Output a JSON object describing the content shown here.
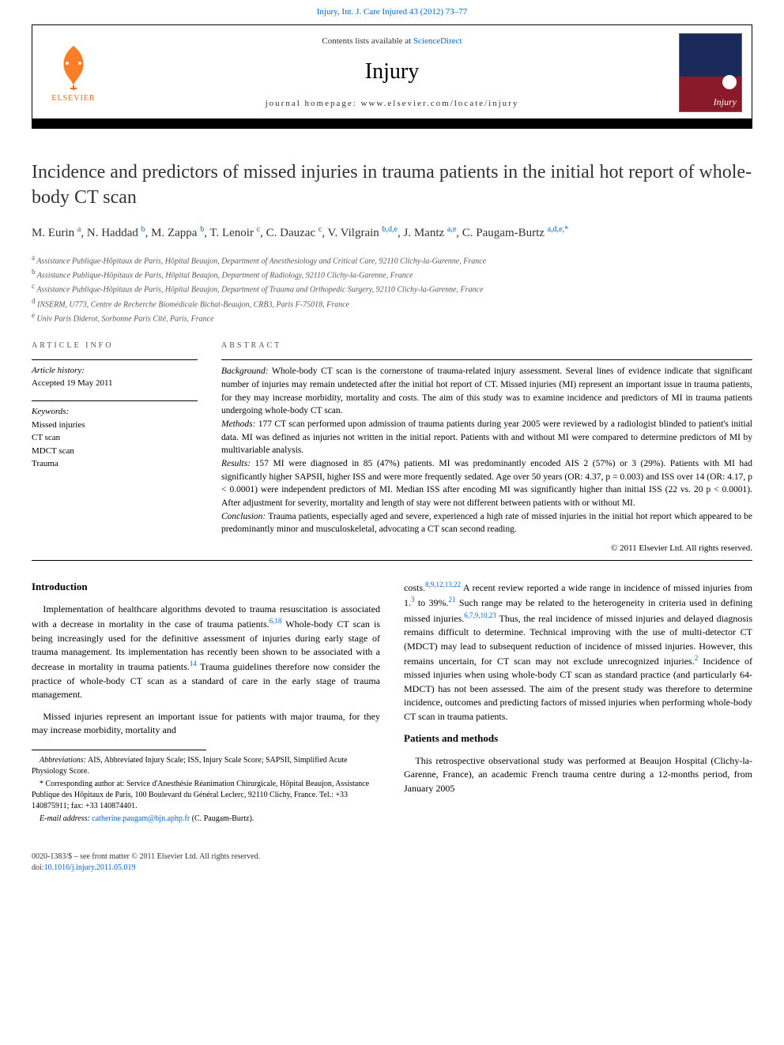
{
  "top_link": "Injury, Int. J. Care Injured 43 (2012) 73–77",
  "header": {
    "contents_prefix": "Contents lists available at ",
    "contents_link": "ScienceDirect",
    "journal": "Injury",
    "homepage_prefix": "journal homepage: ",
    "homepage": "www.elsevier.com/locate/injury",
    "elsevier": "ELSEVIER",
    "cover_label": "Injury"
  },
  "title": "Incidence and predictors of missed injuries in trauma patients in the initial hot report of whole-body CT scan",
  "authors_html": "M. Eurin <sup>a</sup>, N. Haddad <sup>b</sup>, M. Zappa <sup>b</sup>, T. Lenoir <sup>c</sup>, C. Dauzac <sup>c</sup>, V. Vilgrain <sup>b,d,e</sup>, J. Mantz <sup>a,e</sup>, C. Paugam-Burtz <sup>a,d,e,*</sup>",
  "affiliations": [
    {
      "sup": "a",
      "text": "Assistance Publique-Hôpitaux de Paris, Hôpital Beaujon, Department of Anesthesiology and Critical Care, 92110 Clichy-la-Garenne, France"
    },
    {
      "sup": "b",
      "text": "Assistance Publique-Hôpitaux de Paris, Hôpital Beaujon, Department of Radiology, 92110 Clichy-la-Garenne, France"
    },
    {
      "sup": "c",
      "text": "Assistance Publique-Hôpitaux de Paris, Hôpital Beaujon, Department of Trauma and Orthopedic Surgery, 92110 Clichy-la-Garenne, France"
    },
    {
      "sup": "d",
      "text": "INSERM, U773, Centre de Recherche Biomédicale Bichat-Beaujon, CRB3, Paris F-75018, France"
    },
    {
      "sup": "e",
      "text": "Univ Paris Diderot, Sorbonne Paris Cité, Paris, France"
    }
  ],
  "info": {
    "section_label": "ARTICLE INFO",
    "history_label": "Article history:",
    "history_value": "Accepted 19 May 2011",
    "keywords_label": "Keywords:",
    "keywords": [
      "Missed injuries",
      "CT scan",
      "MDCT scan",
      "Trauma"
    ]
  },
  "abstract": {
    "section_label": "ABSTRACT",
    "background_label": "Background:",
    "background": "Whole-body CT scan is the cornerstone of trauma-related injury assessment. Several lines of evidence indicate that significant number of injuries may remain undetected after the initial hot report of CT. Missed injuries (MI) represent an important issue in trauma patients, for they may increase morbidity, mortality and costs. The aim of this study was to examine incidence and predictors of MI in trauma patients undergoing whole-body CT scan.",
    "methods_label": "Methods:",
    "methods": "177 CT scan performed upon admission of trauma patients during year 2005 were reviewed by a radiologist blinded to patient's initial data. MI was defined as injuries not written in the initial report. Patients with and without MI were compared to determine predictors of MI by multivariable analysis.",
    "results_label": "Results:",
    "results": "157 MI were diagnosed in 85 (47%) patients. MI was predominantly encoded AIS 2 (57%) or 3 (29%). Patients with MI had significantly higher SAPSII, higher ISS and were more frequently sedated. Age over 50 years (OR: 4.37, p = 0.003) and ISS over 14 (OR: 4.17, p < 0.0001) were independent predictors of MI. Median ISS after encoding MI was significantly higher than initial ISS (22 vs. 20 p < 0.0001). After adjustment for severity, mortality and length of stay were not different between patients with or without MI.",
    "conclusion_label": "Conclusion:",
    "conclusion": "Trauma patients, especially aged and severe, experienced a high rate of missed injuries in the initial hot report which appeared to be predominantly minor and musculoskeletal, advocating a CT scan second reading.",
    "copyright": "© 2011 Elsevier Ltd. All rights reserved."
  },
  "body": {
    "left": {
      "heading": "Introduction",
      "p1": "Implementation of healthcare algorithms devoted to trauma resuscitation is associated with a decrease in mortality in the case of trauma patients.6,18 Whole-body CT scan is being increasingly used for the definitive assessment of injuries during early stage of trauma management. Its implementation has recently been shown to be associated with a decrease in mortality in trauma patients.14 Trauma guidelines therefore now consider the practice of whole-body CT scan as a standard of care in the early stage of trauma management.",
      "p2": "Missed injuries represent an important issue for patients with major trauma, for they may increase morbidity, mortality and"
    },
    "right": {
      "p1": "costs.8,9,12,13,22 A recent review reported a wide range in incidence of missed injuries from 1.3 to 39%.21 Such range may be related to the heterogeneity in criteria used in defining missed injuries.6,7,9,10,23 Thus, the real incidence of missed injuries and delayed diagnosis remains difficult to determine. Technical improving with the use of multi-detector CT (MDCT) may lead to subsequent reduction of incidence of missed injuries. However, this remains uncertain, for CT scan may not exclude unrecognized injuries.2 Incidence of missed injuries when using whole-body CT scan as standard practice (and particularly 64-MDCT) has not been assessed. The aim of the present study was therefore to determine incidence, outcomes and predicting factors of missed injuries when performing whole-body CT scan in trauma patients.",
      "heading": "Patients and methods",
      "p2": "This retrospective observational study was performed at Beaujon Hospital (Clichy-la-Garenne, France), an academic French trauma centre during a 12-months period, from January 2005"
    }
  },
  "footnotes": {
    "abbrev_label": "Abbreviations:",
    "abbrev": "AIS, Abbreviated Injury Scale; ISS, Injury Scale Score; SAPSII, Simplified Acute Physiology Score.",
    "corresp": "* Corresponding author at: Service d'Anesthésie Réanimation Chirurgicale, Hôpital Beaujon, Assistance Publique des Hôpitaux de Paris, 100 Boulevard du Général Leclerc, 92110 Clichy, France. Tel.: +33 140875911; fax: +33 140874401.",
    "email_label": "E-mail address:",
    "email": "catherine.paugam@bjn.aphp.fr",
    "email_suffix": "(C. Paugam-Burtz)."
  },
  "bottom": {
    "left_line1": "0020-1383/$ – see front matter © 2011 Elsevier Ltd. All rights reserved.",
    "left_line2_prefix": "doi:",
    "doi": "10.1016/j.injury.2011.05.019"
  },
  "colors": {
    "link": "#0066cc",
    "elsevier_orange": "#ff6600",
    "cover_top": "#1a2a5a",
    "cover_bottom": "#8a1a2a"
  }
}
